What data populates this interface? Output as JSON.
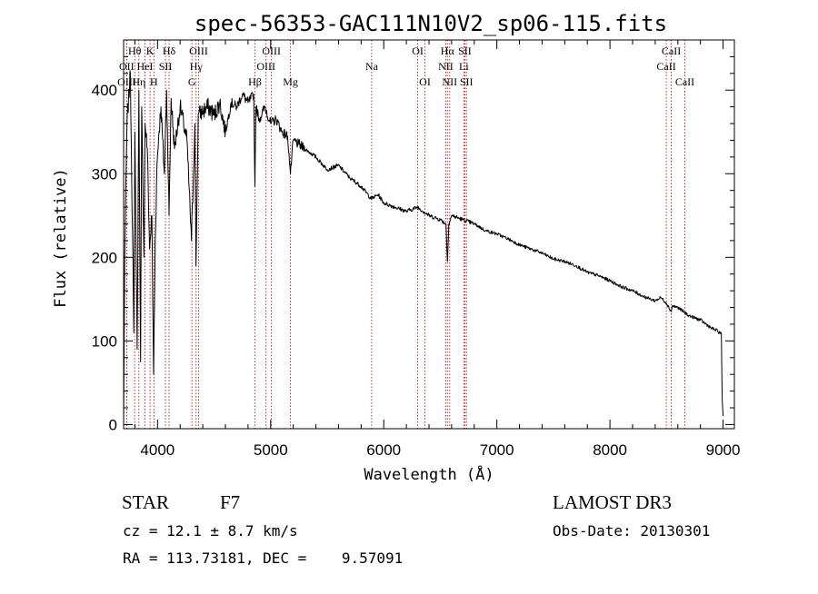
{
  "chart_data": {
    "type": "line",
    "title": "spec-56353-GAC111N10V2_sp06-115.fits",
    "xlabel": "Wavelength (Å)",
    "ylabel": "Flux (relative)",
    "xlim": [
      3700,
      9100
    ],
    "ylim": [
      -5,
      460
    ],
    "x_ticks": [
      4000,
      5000,
      6000,
      7000,
      8000,
      9000
    ],
    "y_ticks": [
      0,
      100,
      200,
      300,
      400
    ],
    "series": [
      {
        "name": "flux",
        "x": [
          3700,
          3710,
          3730,
          3760,
          3790,
          3800,
          3820,
          3835,
          3850,
          3860,
          3880,
          3890,
          3910,
          3930,
          3950,
          3965,
          3980,
          3995,
          4010,
          4030,
          4060,
          4080,
          4102,
          4120,
          4150,
          4200,
          4230,
          4260,
          4300,
          4330,
          4340,
          4360,
          4400,
          4450,
          4500,
          4550,
          4600,
          4650,
          4700,
          4750,
          4800,
          4850,
          4861,
          4870,
          4900,
          4950,
          5000,
          5050,
          5100,
          5150,
          5175,
          5200,
          5250,
          5300,
          5400,
          5500,
          5600,
          5700,
          5800,
          5890,
          5950,
          6000,
          6100,
          6200,
          6300,
          6400,
          6500,
          6550,
          6563,
          6575,
          6600,
          6700,
          6800,
          6900,
          7000,
          7100,
          7200,
          7300,
          7400,
          7500,
          7600,
          7700,
          7800,
          7900,
          8000,
          8100,
          8200,
          8300,
          8400,
          8450,
          8500,
          8542,
          8550,
          8600,
          8650,
          8700,
          8800,
          8900,
          8950,
          8985,
          8992,
          9000
        ],
        "y": [
          0,
          200,
          360,
          420,
          110,
          350,
          90,
          400,
          75,
          380,
          200,
          360,
          330,
          210,
          250,
          60,
          220,
          310,
          345,
          380,
          300,
          400,
          250,
          390,
          330,
          380,
          360,
          340,
          220,
          360,
          190,
          370,
          375,
          380,
          370,
          385,
          350,
          385,
          380,
          395,
          385,
          395,
          285,
          380,
          365,
          380,
          360,
          365,
          350,
          345,
          300,
          340,
          335,
          330,
          320,
          305,
          310,
          295,
          285,
          270,
          275,
          265,
          260,
          255,
          260,
          250,
          245,
          240,
          195,
          240,
          250,
          245,
          240,
          232,
          228,
          222,
          215,
          210,
          205,
          198,
          195,
          190,
          182,
          178,
          172,
          165,
          160,
          153,
          148,
          152,
          145,
          135,
          142,
          140,
          135,
          130,
          125,
          115,
          112,
          108,
          30,
          10
        ]
      }
    ],
    "spectral_lines": [
      {
        "name": "Hθ",
        "x": 3798,
        "row": 1
      },
      {
        "name": "OII",
        "x": 3727,
        "row": 2
      },
      {
        "name": "OIII",
        "x": 3728,
        "row": 3
      },
      {
        "name": "Hη",
        "x": 3835,
        "row": 3
      },
      {
        "name": "HeI",
        "x": 3889,
        "row": 2
      },
      {
        "name": "K",
        "x": 3934,
        "row": 1
      },
      {
        "name": "SII",
        "x": 4070,
        "row": 2
      },
      {
        "name": "H",
        "x": 3968,
        "row": 3
      },
      {
        "name": "Hδ",
        "x": 4102,
        "row": 1
      },
      {
        "name": "OIII",
        "x": 4363,
        "row": 1
      },
      {
        "name": "Hγ",
        "x": 4341,
        "row": 2
      },
      {
        "name": "G",
        "x": 4304,
        "row": 3
      },
      {
        "name": "Hβ",
        "x": 4861,
        "row": 3
      },
      {
        "name": "OIII",
        "x": 5007,
        "row": 1
      },
      {
        "name": "OIII",
        "x": 4959,
        "row": 2
      },
      {
        "name": "Mg",
        "x": 5175,
        "row": 3
      },
      {
        "name": "Na",
        "x": 5893,
        "row": 2
      },
      {
        "name": "OI",
        "x": 6300,
        "row": 1
      },
      {
        "name": "OI",
        "x": 6364,
        "row": 3
      },
      {
        "name": "Hα",
        "x": 6563,
        "row": 1
      },
      {
        "name": "NII",
        "x": 6548,
        "row": 2
      },
      {
        "name": "NII",
        "x": 6583,
        "row": 3
      },
      {
        "name": "SII",
        "x": 6717,
        "row": 1
      },
      {
        "name": "Li",
        "x": 6708,
        "row": 2
      },
      {
        "name": "SII",
        "x": 6731,
        "row": 3
      },
      {
        "name": "CaII",
        "x": 8542,
        "row": 1
      },
      {
        "name": "CaII",
        "x": 8498,
        "row": 2
      },
      {
        "name": "CaII",
        "x": 8662,
        "row": 3
      }
    ],
    "line_color": "#b22222",
    "grid": false,
    "legend": "none"
  },
  "info": {
    "object_class": "STAR",
    "subclass": "F7",
    "survey": "LAMOST DR3",
    "cz": "cz = 12.1 ± 8.7 km/s",
    "obs_date": "Obs-Date: 20130301",
    "coords": "RA = 113.73181, DEC =    9.57091"
  }
}
